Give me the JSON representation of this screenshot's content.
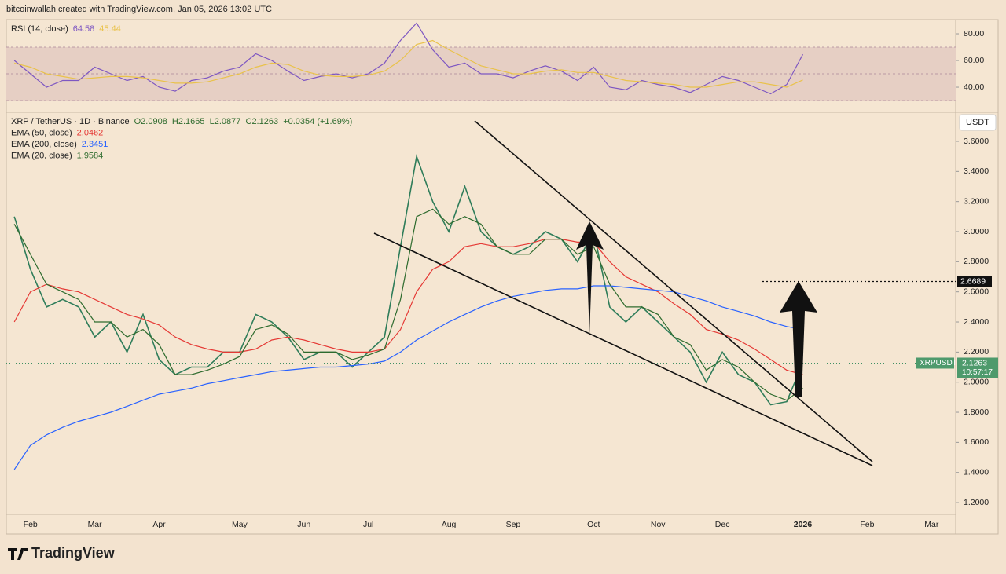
{
  "header": "bitcoinwallah created with TradingView.com, Jan 05, 2026 13:02 UTC",
  "brand": "TradingView",
  "chart_data": [
    {
      "type": "line",
      "title": "RSI (14, close)",
      "ylim": [
        21.2,
        90.6
      ],
      "yticks": [
        {
          "value": 40,
          "label": "40.00"
        },
        {
          "value": 60,
          "label": "60.00"
        },
        {
          "value": 80,
          "label": "80.00"
        }
      ],
      "band": [
        30,
        70
      ],
      "levels": [
        50
      ],
      "band_color": "#e6cfc4",
      "series": [
        {
          "color": "#7e57c2",
          "last": 64.58,
          "values": [
            60,
            50,
            40,
            45,
            45,
            55,
            50,
            45,
            48,
            40,
            37,
            45,
            47,
            52,
            55,
            65,
            60,
            52,
            45,
            48,
            50,
            47,
            50,
            58,
            75,
            88,
            68,
            55,
            58,
            50,
            50,
            47,
            52,
            56,
            52,
            45,
            55,
            40,
            38,
            45,
            42,
            40,
            36,
            42,
            48,
            45,
            40,
            35,
            42,
            64.58,
            null,
            null,
            null,
            null,
            null,
            null,
            null,
            null,
            null
          ]
        },
        {
          "color": "#e9c24a",
          "last": 45.44,
          "values": [
            58,
            55,
            50,
            48,
            46,
            47,
            48,
            48,
            47,
            45,
            43,
            43,
            44,
            47,
            50,
            55,
            58,
            57,
            52,
            49,
            48,
            48,
            49,
            52,
            60,
            72,
            75,
            68,
            62,
            56,
            53,
            50,
            50,
            52,
            53,
            51,
            51,
            48,
            45,
            44,
            43,
            42,
            40,
            40,
            42,
            44,
            44,
            42,
            40,
            45.44,
            null,
            null,
            null,
            null,
            null,
            null,
            null,
            null,
            null
          ]
        }
      ]
    },
    {
      "type": "line",
      "title": "XRP / TetherUS · 1D · Binance",
      "ohlc": "O2.0908  H2.1665  L2.0877  C2.1263  +0.0354 (+1.69%)",
      "unit": "USDT",
      "symbol": "XRPUSDT",
      "countdown": "10:57:17",
      "last_price": 2.1263,
      "levels": [
        2.6689
      ],
      "ylim": [
        1.122,
        3.793
      ],
      "yticks": [
        {
          "value": 1.2,
          "label": "1.2000"
        },
        {
          "value": 1.4,
          "label": "1.4000"
        },
        {
          "value": 1.6,
          "label": "1.6000"
        },
        {
          "value": 1.8,
          "label": "1.8000"
        },
        {
          "value": 2.0,
          "label": "2.0000"
        },
        {
          "value": 2.2,
          "label": "2.2000"
        },
        {
          "value": 2.4,
          "label": "2.4000"
        },
        {
          "value": 2.6,
          "label": "2.6000"
        },
        {
          "value": 2.8,
          "label": "2.8000"
        },
        {
          "value": 3.0,
          "label": "3.0000"
        },
        {
          "value": 3.2,
          "label": "3.2000"
        },
        {
          "value": 3.4,
          "label": "3.4000"
        },
        {
          "value": 3.6,
          "label": "3.6000"
        }
      ],
      "categories": [
        null,
        "Feb",
        null,
        null,
        null,
        "Mar",
        null,
        null,
        null,
        "Apr",
        null,
        null,
        null,
        null,
        "May",
        null,
        null,
        null,
        "Jun",
        null,
        null,
        null,
        "Jul",
        null,
        null,
        null,
        null,
        "Aug",
        null,
        null,
        null,
        "Sep",
        null,
        null,
        null,
        null,
        "Oct",
        null,
        null,
        null,
        "Nov",
        null,
        null,
        null,
        "Dec",
        null,
        null,
        null,
        null,
        "2026",
        null,
        null,
        null,
        "Feb",
        null,
        null,
        null,
        "Mar",
        null
      ],
      "series": [
        {
          "color": "#2f7d5a",
          "values": [
            3.1,
            2.75,
            2.5,
            2.55,
            2.5,
            2.3,
            2.4,
            2.2,
            2.45,
            2.15,
            2.05,
            2.1,
            2.1,
            2.2,
            2.2,
            2.45,
            2.4,
            2.3,
            2.15,
            2.2,
            2.2,
            2.1,
            2.2,
            2.3,
            2.9,
            3.5,
            3.2,
            3.0,
            3.3,
            3.0,
            2.9,
            2.85,
            2.9,
            3.0,
            2.95,
            2.8,
            3.0,
            2.5,
            2.4,
            2.5,
            2.4,
            2.3,
            2.2,
            2.0,
            2.2,
            2.05,
            2.0,
            1.85,
            1.87,
            2.13,
            null,
            null,
            null,
            null,
            null,
            null,
            null,
            null,
            null
          ]
        },
        {
          "name": "EMA (50, close)",
          "color": "#e53935",
          "last": 2.0462,
          "values": [
            2.4,
            2.6,
            2.65,
            2.62,
            2.6,
            2.55,
            2.5,
            2.45,
            2.42,
            2.38,
            2.3,
            2.25,
            2.22,
            2.2,
            2.2,
            2.22,
            2.28,
            2.3,
            2.28,
            2.25,
            2.22,
            2.2,
            2.2,
            2.22,
            2.35,
            2.6,
            2.75,
            2.8,
            2.9,
            2.92,
            2.9,
            2.9,
            2.92,
            2.95,
            2.95,
            2.93,
            2.93,
            2.8,
            2.7,
            2.65,
            2.6,
            2.52,
            2.45,
            2.35,
            2.32,
            2.28,
            2.22,
            2.15,
            2.08,
            2.05,
            null,
            null,
            null,
            null,
            null,
            null,
            null,
            null,
            null
          ]
        },
        {
          "name": "EMA (200, close)",
          "color": "#2962ff",
          "last": 2.3451,
          "values": [
            1.42,
            1.58,
            1.65,
            1.7,
            1.74,
            1.77,
            1.8,
            1.84,
            1.88,
            1.92,
            1.94,
            1.96,
            1.99,
            2.01,
            2.03,
            2.05,
            2.07,
            2.08,
            2.09,
            2.1,
            2.1,
            2.11,
            2.12,
            2.14,
            2.2,
            2.28,
            2.34,
            2.4,
            2.45,
            2.5,
            2.54,
            2.57,
            2.59,
            2.61,
            2.62,
            2.62,
            2.64,
            2.64,
            2.63,
            2.62,
            2.61,
            2.6,
            2.57,
            2.54,
            2.5,
            2.47,
            2.44,
            2.4,
            2.37,
            2.35,
            null,
            null,
            null,
            null,
            null,
            null,
            null,
            null,
            null
          ]
        },
        {
          "name": "EMA (20, close)",
          "color": "#2e6b2e",
          "last": 1.9584,
          "values": [
            3.05,
            2.85,
            2.65,
            2.6,
            2.55,
            2.4,
            2.4,
            2.3,
            2.35,
            2.25,
            2.05,
            2.05,
            2.08,
            2.12,
            2.17,
            2.35,
            2.38,
            2.32,
            2.2,
            2.2,
            2.2,
            2.15,
            2.18,
            2.22,
            2.55,
            3.1,
            3.15,
            3.05,
            3.1,
            3.05,
            2.9,
            2.85,
            2.85,
            2.95,
            2.95,
            2.85,
            2.9,
            2.65,
            2.5,
            2.5,
            2.45,
            2.3,
            2.25,
            2.08,
            2.15,
            2.1,
            2.0,
            1.92,
            1.88,
            1.96,
            null,
            null,
            null,
            null,
            null,
            null,
            null,
            null,
            null
          ]
        }
      ]
    }
  ]
}
